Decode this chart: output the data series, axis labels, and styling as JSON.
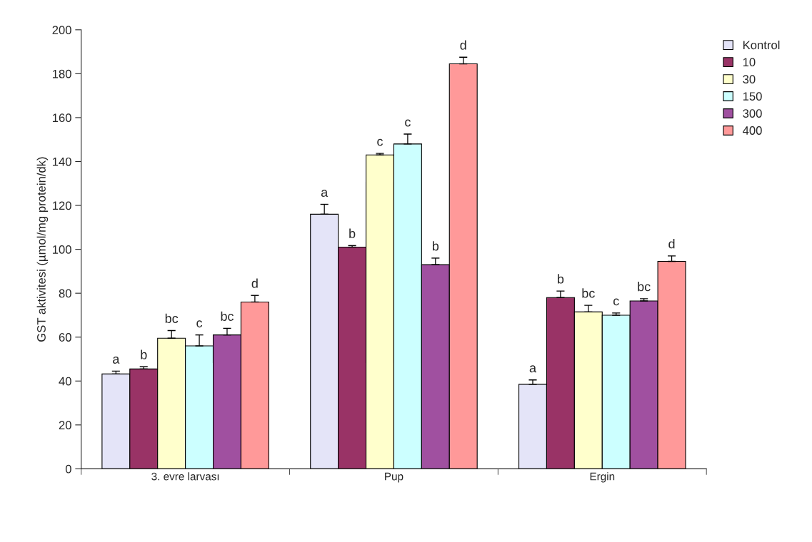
{
  "chart_data": {
    "type": "bar",
    "ylabel": "GST aktivitesi (µmol/mg protein/dk)",
    "categories": [
      "3. evre larvası",
      "Pup",
      "Ergin"
    ],
    "series": [
      {
        "name": "Kontrol",
        "color": "#e4e4f8",
        "values": [
          43.2,
          116,
          38.5
        ],
        "errors": [
          [
            43.2,
            44.5
          ],
          [
            116,
            120.5
          ],
          [
            38.5,
            40.5
          ]
        ],
        "value_labels": [
          "a",
          "a",
          "a"
        ]
      },
      {
        "name": "10",
        "color": "#993366",
        "values": [
          45.5,
          101,
          78
        ],
        "errors": [
          [
            45.5,
            46.5
          ],
          [
            101,
            101.7
          ],
          [
            78,
            81
          ]
        ],
        "value_labels": [
          "b",
          "b",
          "b"
        ]
      },
      {
        "name": "30",
        "color": "#ffffcc",
        "values": [
          59.5,
          143,
          71.5
        ],
        "errors": [
          [
            59.5,
            63
          ],
          [
            143,
            143.7
          ],
          [
            71.5,
            74.5
          ]
        ],
        "value_labels": [
          "bc",
          "c",
          "bc"
        ]
      },
      {
        "name": "150",
        "color": "#ccffff",
        "values": [
          56,
          148,
          70
        ],
        "errors": [
          [
            56,
            61
          ],
          [
            148,
            152.5
          ],
          [
            70,
            71
          ]
        ],
        "value_labels": [
          "c",
          "c",
          "c"
        ]
      },
      {
        "name": "300",
        "color": "#a050a0",
        "values": [
          61,
          93,
          76.5
        ],
        "errors": [
          [
            61,
            64
          ],
          [
            93,
            96
          ],
          [
            76.5,
            77.5
          ]
        ],
        "value_labels": [
          "bc",
          "b",
          "bc"
        ]
      },
      {
        "name": "400",
        "color": "#ff9999",
        "values": [
          76,
          184.5,
          94.5
        ],
        "errors": [
          [
            76,
            79
          ],
          [
            184.5,
            187.5
          ],
          [
            94.5,
            97
          ]
        ],
        "value_labels": [
          "d",
          "d",
          "d"
        ]
      }
    ],
    "ylim": [
      0,
      200
    ],
    "yticks": [
      0,
      20,
      40,
      60,
      80,
      100,
      120,
      140,
      160,
      180,
      200
    ],
    "grid": false,
    "legend": "top right"
  }
}
